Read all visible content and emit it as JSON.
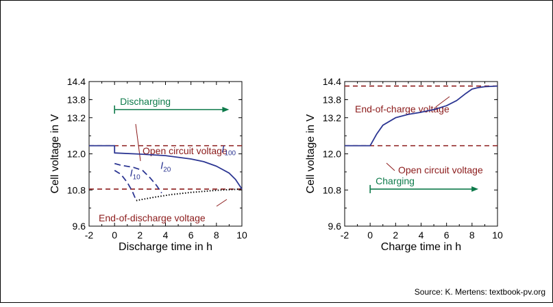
{
  "source": "Source: K. Mertens: textbook-pv.org",
  "colors": {
    "curve": "#2b3592",
    "dashed_red": "#8b1a1a",
    "arrow_green": "#0d7a4a",
    "axis": "#000000"
  },
  "chart_data": [
    {
      "type": "line",
      "xlabel": "Discharge time in h",
      "ylabel": "Cell voltage in V",
      "xlim": [
        -2,
        10
      ],
      "ylim": [
        9.6,
        14.4
      ],
      "x_ticks": [
        "-2",
        "0",
        "2",
        "4",
        "6",
        "8",
        "10"
      ],
      "y_ticks": [
        "9.6",
        "10.8",
        "12.0",
        "13.2",
        "13.8",
        "14.4"
      ],
      "series": [
        {
          "name": "I100",
          "sub": "100",
          "style": "solid",
          "color": "#2b3592",
          "x": [
            -2,
            0,
            0,
            2,
            4,
            6,
            7,
            8,
            9,
            9.5,
            10
          ],
          "y": [
            12.27,
            12.27,
            12.03,
            11.99,
            11.94,
            11.83,
            11.74,
            11.59,
            11.36,
            11.15,
            10.83
          ]
        },
        {
          "name": "I20",
          "sub": "20",
          "style": "dashed",
          "color": "#2b3592",
          "x": [
            0,
            0.5,
            1.5,
            2.2,
            2.8,
            3.3,
            3.7
          ],
          "y": [
            11.68,
            11.62,
            11.55,
            11.45,
            11.2,
            10.95,
            10.7
          ]
        },
        {
          "name": "I10",
          "sub": "10",
          "style": "dashed",
          "color": "#2b3592",
          "x": [
            0,
            0.5,
            1.0,
            1.4,
            1.7
          ],
          "y": [
            11.45,
            11.32,
            11.05,
            10.75,
            10.45
          ]
        },
        {
          "name": "",
          "style": "dotted",
          "color": "#000000",
          "x": [
            1.7,
            3,
            4.5,
            6,
            8,
            10
          ],
          "y": [
            10.45,
            10.55,
            10.65,
            10.72,
            10.79,
            10.83
          ]
        }
      ],
      "reference_lines": [
        {
          "label": "Open circuit voltage",
          "y": 12.27
        },
        {
          "label": "End-of-discharge voltage",
          "y": 10.83
        }
      ],
      "arrow": {
        "label": "Discharging",
        "x_from": 0,
        "x_to": 9,
        "y": 13.47
      },
      "curve_labels": [
        {
          "name": "I",
          "sub": "100",
          "x": 8.4,
          "y": 12.05
        },
        {
          "name": "I",
          "sub": "20",
          "x": 3.6,
          "y": 11.5
        },
        {
          "name": "I",
          "sub": "10",
          "x": 1.2,
          "y": 11.25
        }
      ]
    },
    {
      "type": "line",
      "xlabel": "Charge time in h",
      "ylabel": "Cell voltage in V",
      "xlim": [
        -2,
        10
      ],
      "ylim": [
        9.6,
        14.4
      ],
      "x_ticks": [
        "-2",
        "0",
        "2",
        "4",
        "6",
        "8",
        "10"
      ],
      "y_ticks": [
        "9.6",
        "10.8",
        "12.0",
        "13.2",
        "13.8",
        "14.4"
      ],
      "series": [
        {
          "name": "",
          "style": "solid",
          "color": "#2b3592",
          "x": [
            -2,
            0,
            0.5,
            1,
            2,
            3,
            4,
            5,
            6,
            6.8,
            7.5,
            8,
            8.5,
            9,
            10
          ],
          "y": [
            12.27,
            12.27,
            12.65,
            12.95,
            13.2,
            13.31,
            13.38,
            13.47,
            13.6,
            13.77,
            14.0,
            14.15,
            14.2,
            14.23,
            14.25
          ]
        }
      ],
      "reference_lines": [
        {
          "label": "End-of-charge voltage",
          "y": 14.25
        },
        {
          "label": "Open circuit voltage",
          "y": 12.27
        }
      ],
      "arrow": {
        "label": "Charging",
        "x_from": 0,
        "x_to": 8.5,
        "y": 10.83
      }
    }
  ]
}
